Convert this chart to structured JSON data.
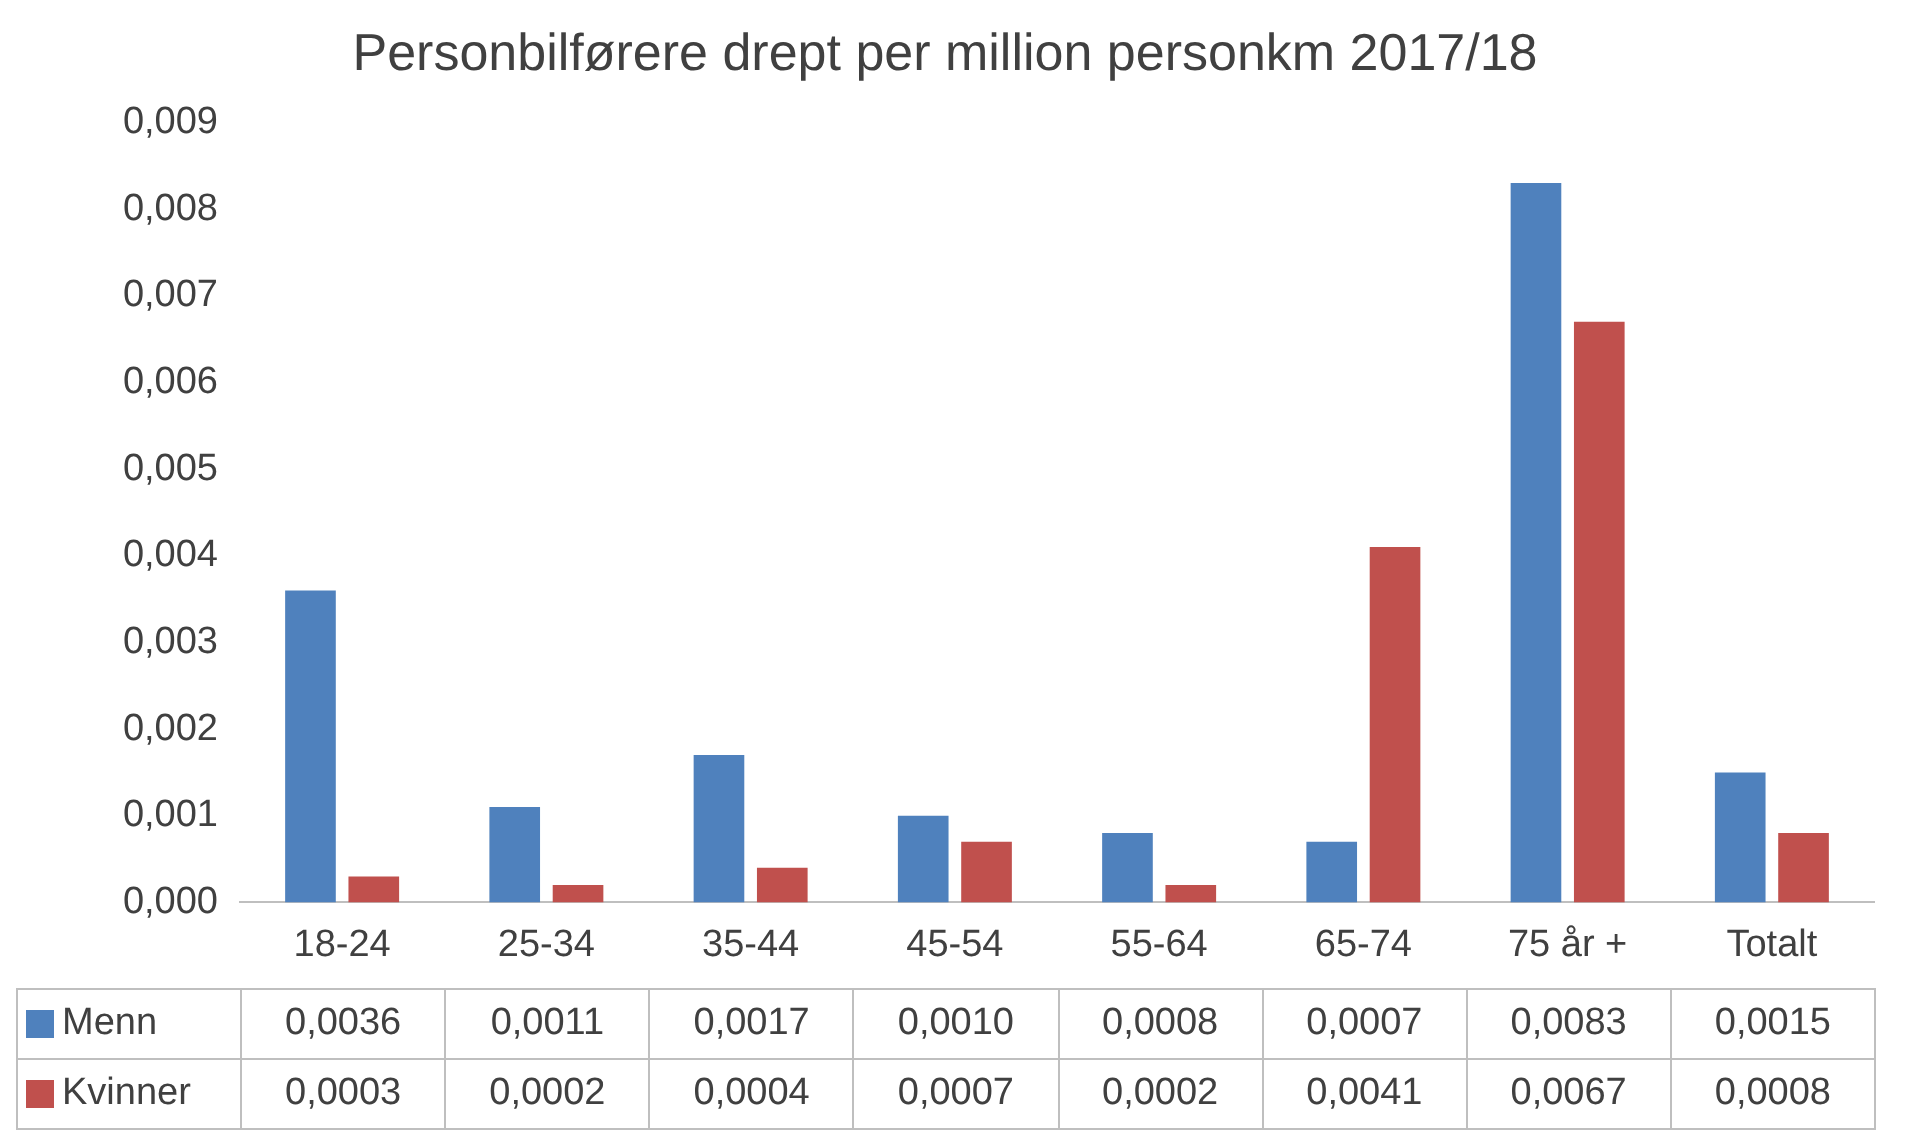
{
  "chart_data": {
    "type": "bar",
    "title": "Personbilførere drept per million personkm 2017/18",
    "categories": [
      "18-24",
      "25-34",
      "35-44",
      "45-54",
      "55-64",
      "65-74",
      "75 år +",
      "Totalt"
    ],
    "series": [
      {
        "name": "Menn",
        "color": "#4f81bd",
        "values": [
          0.0036,
          0.0011,
          0.0017,
          0.001,
          0.0008,
          0.0007,
          0.0083,
          0.0015
        ],
        "value_labels": [
          "0,0036",
          "0,0011",
          "0,0017",
          "0,0010",
          "0,0008",
          "0,0007",
          "0,0083",
          "0,0015"
        ]
      },
      {
        "name": "Kvinner",
        "color": "#c0504d",
        "values": [
          0.0003,
          0.0002,
          0.0004,
          0.0007,
          0.0002,
          0.0041,
          0.0067,
          0.0008
        ],
        "value_labels": [
          "0,0003",
          "0,0002",
          "0,0004",
          "0,0007",
          "0,0002",
          "0,0041",
          "0,0067",
          "0,0008"
        ]
      }
    ],
    "ylim": [
      0,
      0.009
    ],
    "yticks": [
      {
        "value": 0,
        "label": "0,000"
      },
      {
        "value": 0.001,
        "label": "0,001"
      },
      {
        "value": 0.002,
        "label": "0,002"
      },
      {
        "value": 0.003,
        "label": "0,003"
      },
      {
        "value": 0.004,
        "label": "0,004"
      },
      {
        "value": 0.005,
        "label": "0,005"
      },
      {
        "value": 0.006,
        "label": "0,006"
      },
      {
        "value": 0.007,
        "label": "0,007"
      },
      {
        "value": 0.008,
        "label": "0,008"
      },
      {
        "value": 0.009,
        "label": "0,009"
      }
    ],
    "grid": false,
    "legend": "bottom"
  }
}
